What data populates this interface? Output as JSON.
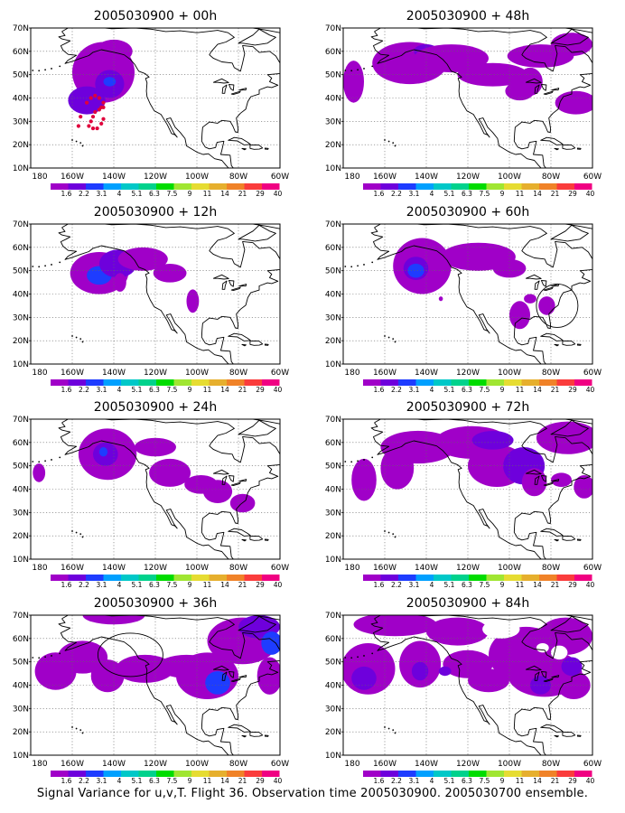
{
  "caption": "Signal Variance for u,v,T. Flight 36. Observation time 2005030900. 2005030700 ensemble.",
  "lat_labels": [
    "70N",
    "60N",
    "50N",
    "40N",
    "30N",
    "20N",
    "10N"
  ],
  "lon_labels": [
    "180",
    "160W",
    "140W",
    "120W",
    "100W",
    "80W",
    "60W"
  ],
  "colorbar": {
    "labels": [
      "1.6",
      "2.2",
      "3.1",
      "4",
      "5.1",
      "6.3",
      "7.5",
      "9",
      "11",
      "14",
      "21",
      "29",
      "40"
    ],
    "colors": [
      "#a000c8",
      "#6e00dc",
      "#1e3cff",
      "#00a0ff",
      "#00c8c8",
      "#00d28c",
      "#00dc00",
      "#a0e632",
      "#e6dc32",
      "#e6af2d",
      "#f08228",
      "#fa3c3c",
      "#f00082"
    ]
  },
  "panels": [
    {
      "title": "2005030900 + 00h"
    },
    {
      "title": "2005030900 + 48h"
    },
    {
      "title": "2005030900 + 12h"
    },
    {
      "title": "2005030900 + 60h"
    },
    {
      "title": "2005030900 + 24h"
    },
    {
      "title": "2005030900 + 72h"
    },
    {
      "title": "2005030900 + 36h"
    },
    {
      "title": "2005030900 + 84h"
    }
  ]
}
